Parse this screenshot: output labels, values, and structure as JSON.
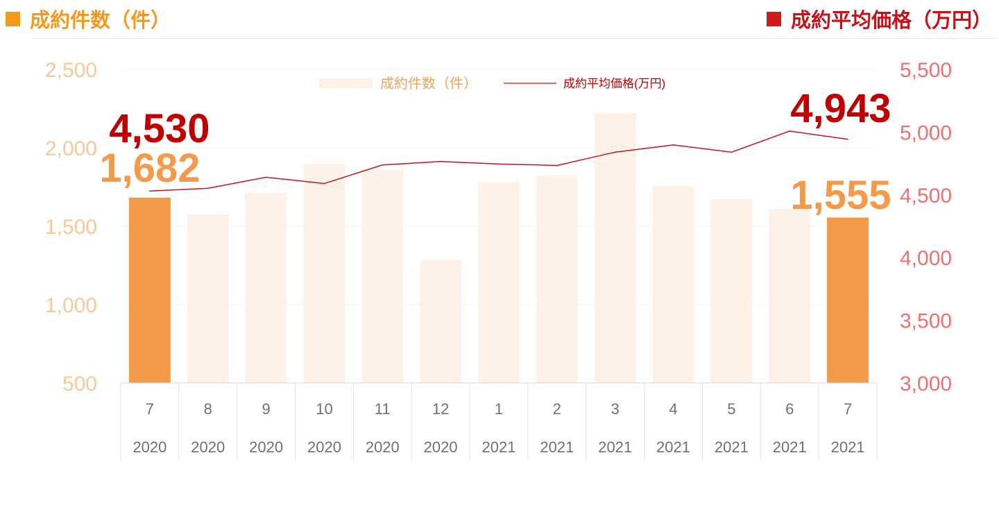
{
  "header": {
    "left_title": "成約件数（件）",
    "left_color": "#f39a1e",
    "right_title": "成約平均価格（万円）",
    "right_color": "#d11b1b"
  },
  "chart_data": {
    "type": "bar",
    "categories": [
      {
        "month": "7",
        "year": "2020"
      },
      {
        "month": "8",
        "year": "2020"
      },
      {
        "month": "9",
        "year": "2020"
      },
      {
        "month": "10",
        "year": "2020"
      },
      {
        "month": "11",
        "year": "2020"
      },
      {
        "month": "12",
        "year": "2020"
      },
      {
        "month": "1",
        "year": "2021"
      },
      {
        "month": "2",
        "year": "2021"
      },
      {
        "month": "3",
        "year": "2021"
      },
      {
        "month": "4",
        "year": "2021"
      },
      {
        "month": "5",
        "year": "2021"
      },
      {
        "month": "6",
        "year": "2021"
      },
      {
        "month": "7",
        "year": "2021"
      }
    ],
    "series": [
      {
        "name": "成約件数（件）",
        "type": "bar",
        "axis": "left",
        "values": [
          1682,
          1575,
          1713,
          1897,
          1860,
          1283,
          1780,
          1822,
          2222,
          1757,
          1673,
          1611,
          1555
        ],
        "color": "#fdf1e8",
        "highlight_color": "#f59a4a",
        "highlight_indices": [
          0,
          12
        ]
      },
      {
        "name": "成約平均価格(万円)",
        "type": "line",
        "axis": "right",
        "values": [
          4530,
          4552,
          4640,
          4590,
          4738,
          4766,
          4746,
          4734,
          4840,
          4898,
          4840,
          5008,
          4943
        ],
        "color": "#c0161f"
      }
    ],
    "y_left": {
      "min": 500,
      "max": 2500,
      "ticks": [
        "500",
        "1,000",
        "1,500",
        "2,000",
        "2,500"
      ],
      "color": "#f7c99a"
    },
    "y_right": {
      "min": 3000,
      "max": 5500,
      "ticks": [
        "3,000",
        "3,500",
        "4,000",
        "4,500",
        "5,000",
        "5,500"
      ],
      "color": "#f07070"
    },
    "annotations": {
      "bar_first": "1,682",
      "bar_last": "1,555",
      "line_first": "4,530",
      "line_last": "4,943",
      "bar_label_color": "#f59a4a",
      "line_label_color": "#c00000"
    },
    "legend": {
      "bar_label": "成約件数（件）",
      "line_label": "成約平均価格(万円)",
      "position": "top-center",
      "bar_label_color": "#f5a25a",
      "line_label_color": "#c00000"
    },
    "grid": true
  }
}
